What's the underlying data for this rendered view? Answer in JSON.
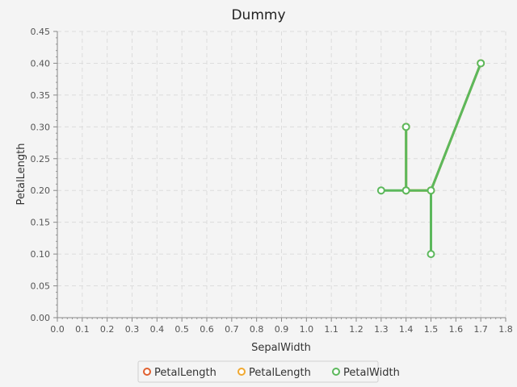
{
  "chart_data": {
    "type": "line",
    "title": "Dummy",
    "xlabel": "SepalWidth",
    "ylabel": "PetalLength",
    "xlim": [
      0.0,
      1.8
    ],
    "ylim": [
      0.0,
      0.45
    ],
    "xticks": [
      "0.0",
      "0.1",
      "0.2",
      "0.3",
      "0.4",
      "0.5",
      "0.6",
      "0.7",
      "0.8",
      "0.9",
      "1.0",
      "1.1",
      "1.2",
      "1.3",
      "1.4",
      "1.5",
      "1.6",
      "1.7",
      "1.8"
    ],
    "yticks": [
      "0.00",
      "0.05",
      "0.10",
      "0.15",
      "0.20",
      "0.25",
      "0.30",
      "0.35",
      "0.40",
      "0.45"
    ],
    "grid": true,
    "legend_position": "bottom",
    "series": [
      {
        "name": "PetalLength",
        "color": "#e0602f",
        "x": [],
        "y": []
      },
      {
        "name": "PetalLength",
        "color": "#f0a830",
        "x": [
          1.4,
          1.4,
          1.5,
          1.7
        ],
        "y": [
          0.3,
          0.2,
          0.2,
          0.4
        ]
      },
      {
        "name": "PetalWidth",
        "color": "#5cb85c",
        "x": [
          1.3,
          1.4,
          1.4,
          1.4,
          1.5,
          1.5,
          1.5,
          1.7
        ],
        "y": [
          0.2,
          0.2,
          0.3,
          0.2,
          0.2,
          0.1,
          0.2,
          0.4
        ]
      }
    ]
  }
}
